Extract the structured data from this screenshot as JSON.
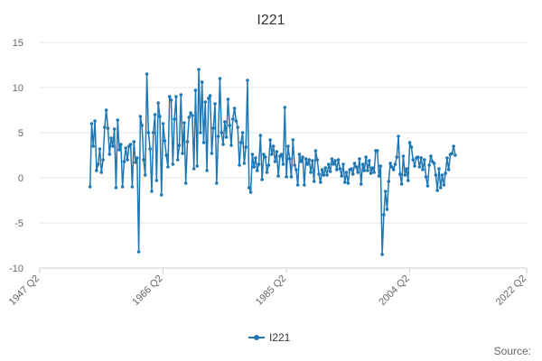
{
  "chart_data": {
    "type": "line",
    "title": "I221",
    "xlabel": "",
    "ylabel": "",
    "ylim": [
      -10,
      15
    ],
    "yticks": [
      "15",
      "10",
      "5",
      "0",
      "-5",
      "-10"
    ],
    "ytick_values": [
      15,
      10,
      5,
      0,
      -5,
      -10
    ],
    "xlim": [
      1947.25,
      2022.25
    ],
    "xticks": [
      "1947 Q2",
      "1966 Q2",
      "1985 Q2",
      "2004 Q2",
      "2022 Q2"
    ],
    "xtick_values": [
      1947.25,
      1966.25,
      1985.25,
      2004.25,
      2022.25
    ],
    "grid": "horizontal",
    "legend": "bottom-center",
    "source_label": "Source:",
    "colors": {
      "series": "#1f77b4",
      "grid": "#e6e6e6"
    },
    "series": [
      {
        "name": "I221",
        "x_start": 1955.0,
        "x_step": 0.25,
        "values": [
          -1.0,
          6.0,
          3.5,
          6.3,
          0.8,
          1.5,
          3.2,
          0.6,
          2.0,
          5.6,
          7.5,
          5.5,
          2.6,
          4.4,
          3.5,
          5.4,
          -1.1,
          6.4,
          3.1,
          3.7,
          -1.0,
          1.8,
          3.3,
          2.0,
          3.5,
          3.7,
          -1.0,
          4.0,
          1.7,
          2.2,
          -8.2,
          6.8,
          5.8,
          2.0,
          0.3,
          11.5,
          5.0,
          3.2,
          -1.5,
          5.0,
          7.0,
          -0.3,
          8.3,
          6.8,
          -1.9,
          6.0,
          4.1,
          2.5,
          1.2,
          9.0,
          8.6,
          1.5,
          6.5,
          9.0,
          2.0,
          3.6,
          9.2,
          2.7,
          6.1,
          -0.6,
          4.0,
          6.7,
          7.2,
          6.9,
          1.0,
          9.7,
          1.3,
          12.0,
          5.0,
          10.6,
          3.9,
          8.4,
          0.8,
          8.8,
          9.1,
          2.7,
          5.5,
          8.2,
          -0.6,
          4.6,
          11.0,
          5.0,
          3.7,
          6.2,
          4.5,
          8.7,
          5.8,
          3.6,
          6.5,
          7.7,
          6.3,
          5.6,
          1.4,
          3.9,
          5.0,
          1.6,
          3.4,
          10.8,
          -1.1,
          -1.6,
          2.6,
          1.2,
          2.2,
          0.8,
          1.5,
          4.7,
          -0.2,
          2.6,
          2.3,
          0.6,
          1.4,
          4.2,
          2.6,
          3.5,
          1.8,
          2.9,
          0.2,
          2.4,
          2.6,
          1.5,
          7.8,
          0.1,
          3.5,
          2.1,
          0.1,
          4.2,
          1.4,
          0.9,
          -0.8,
          2.6,
          1.8,
          2.3,
          -0.8,
          2.1,
          1.5,
          2.0,
          0.6,
          1.9,
          -0.4,
          3.0,
          2.0,
          0.4,
          -0.5,
          0.9,
          0.3,
          1.1,
          0.3,
          1.5,
          0.7,
          2.1,
          1.5,
          1.9,
          0.9,
          2.0,
          1.0,
          0.2,
          1.5,
          -0.5,
          0.6,
          -0.6,
          0.9,
          1.0,
          0.4,
          1.6,
          1.2,
          0.6,
          2.1,
          -0.7,
          1.5,
          0.8,
          2.3,
          0.8,
          1.9,
          0.5,
          1.1,
          0.6,
          3.0,
          3.0,
          0.2,
          1.3,
          -8.5,
          -4.1,
          -1.5,
          -3.5,
          -0.4,
          1.6,
          1.2,
          0.9,
          1.5,
          2.3,
          4.6,
          0.4,
          -0.7,
          2.4,
          0.3,
          1.0,
          -0.3,
          3.9,
          3.4,
          2.0,
          1.3,
          2.2,
          2.3,
          1.2,
          2.2,
          0.9,
          2.0,
          0.1,
          -0.9,
          1.4,
          2.4,
          1.8,
          1.6,
          0.3,
          -1.4,
          1.0,
          -1.1,
          0.3,
          -0.8,
          0.5,
          2.2,
          0.9,
          2.6,
          2.7,
          3.5,
          2.5
        ]
      }
    ]
  }
}
